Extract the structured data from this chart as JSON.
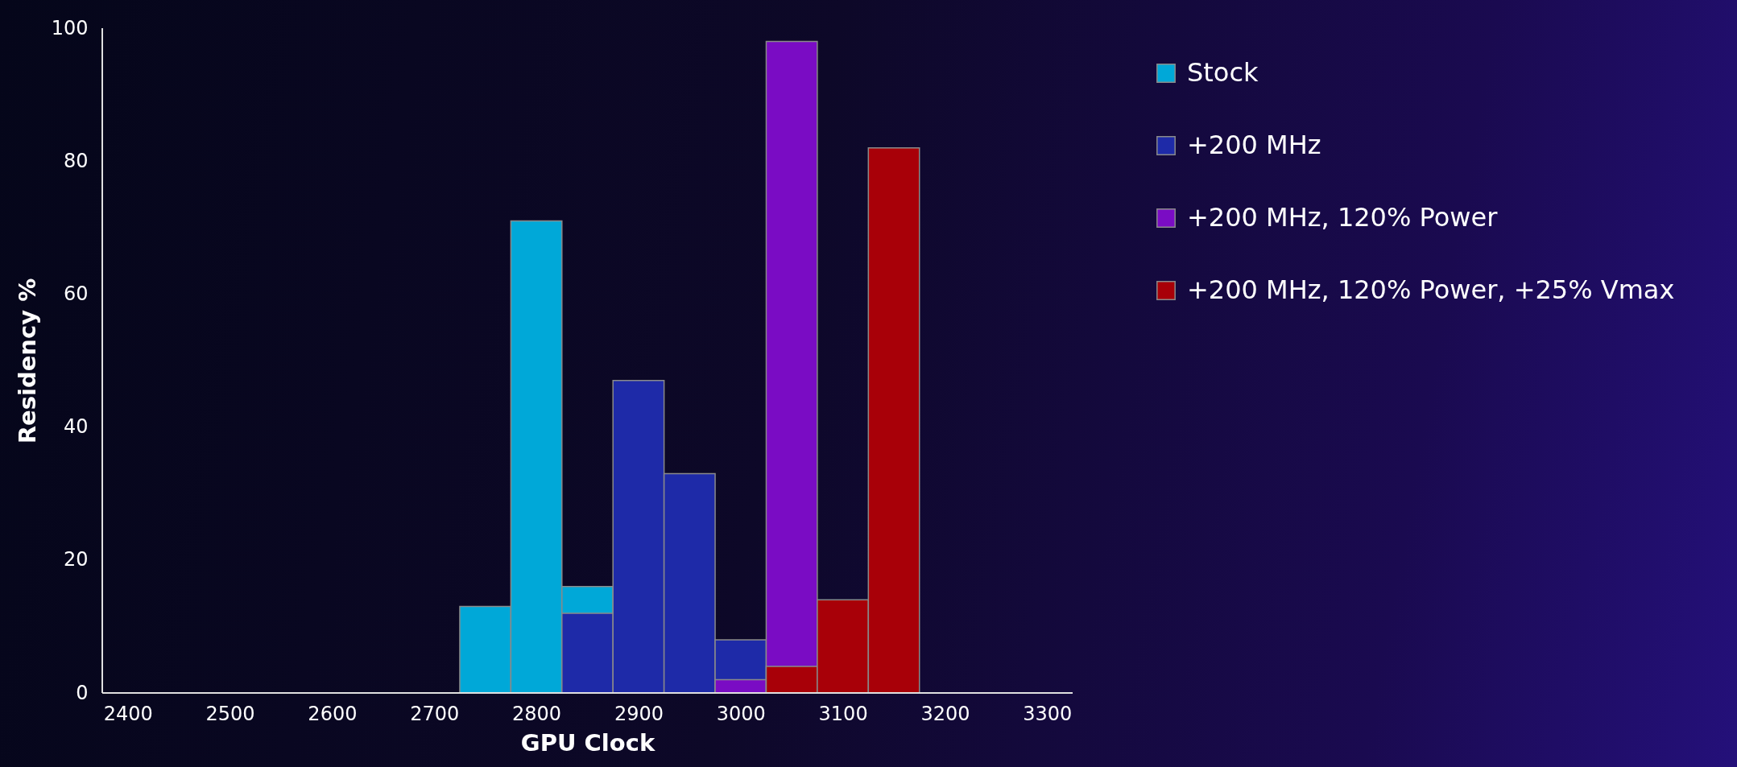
{
  "chart_data": {
    "type": "histogram",
    "xlabel": "GPU Clock",
    "ylabel": "Residency  %",
    "bins": [
      2725,
      2775,
      2825,
      2875,
      2925,
      2975,
      3025,
      3075,
      3125,
      3175
    ],
    "series": [
      {
        "name": "Stock",
        "color": "#00a8d8",
        "values": [
          13,
          71,
          16,
          null,
          null,
          null,
          null,
          null,
          null
        ]
      },
      {
        "name": "+200 MHz",
        "color": "#1e2aa8",
        "values": [
          null,
          null,
          12,
          47,
          33,
          8,
          null,
          null,
          null
        ]
      },
      {
        "name": "+200 MHz, 120% Power",
        "color": "#7a0cc4",
        "values": [
          null,
          null,
          null,
          null,
          null,
          2,
          98,
          null,
          null
        ]
      },
      {
        "name": "+200 MHz, 120% Power, +25% Vmax",
        "color": "#a80008",
        "values": [
          null,
          null,
          null,
          null,
          null,
          null,
          4,
          14,
          82
        ]
      }
    ],
    "xlim": [
      2375,
      3325
    ],
    "xticks": [
      2400,
      2500,
      2600,
      2700,
      2800,
      2900,
      3000,
      3100,
      3200,
      3300
    ],
    "ylim": [
      0,
      100
    ],
    "yticks": [
      0,
      20,
      40,
      60,
      80,
      100
    ],
    "grid": false,
    "legend": "top right"
  }
}
